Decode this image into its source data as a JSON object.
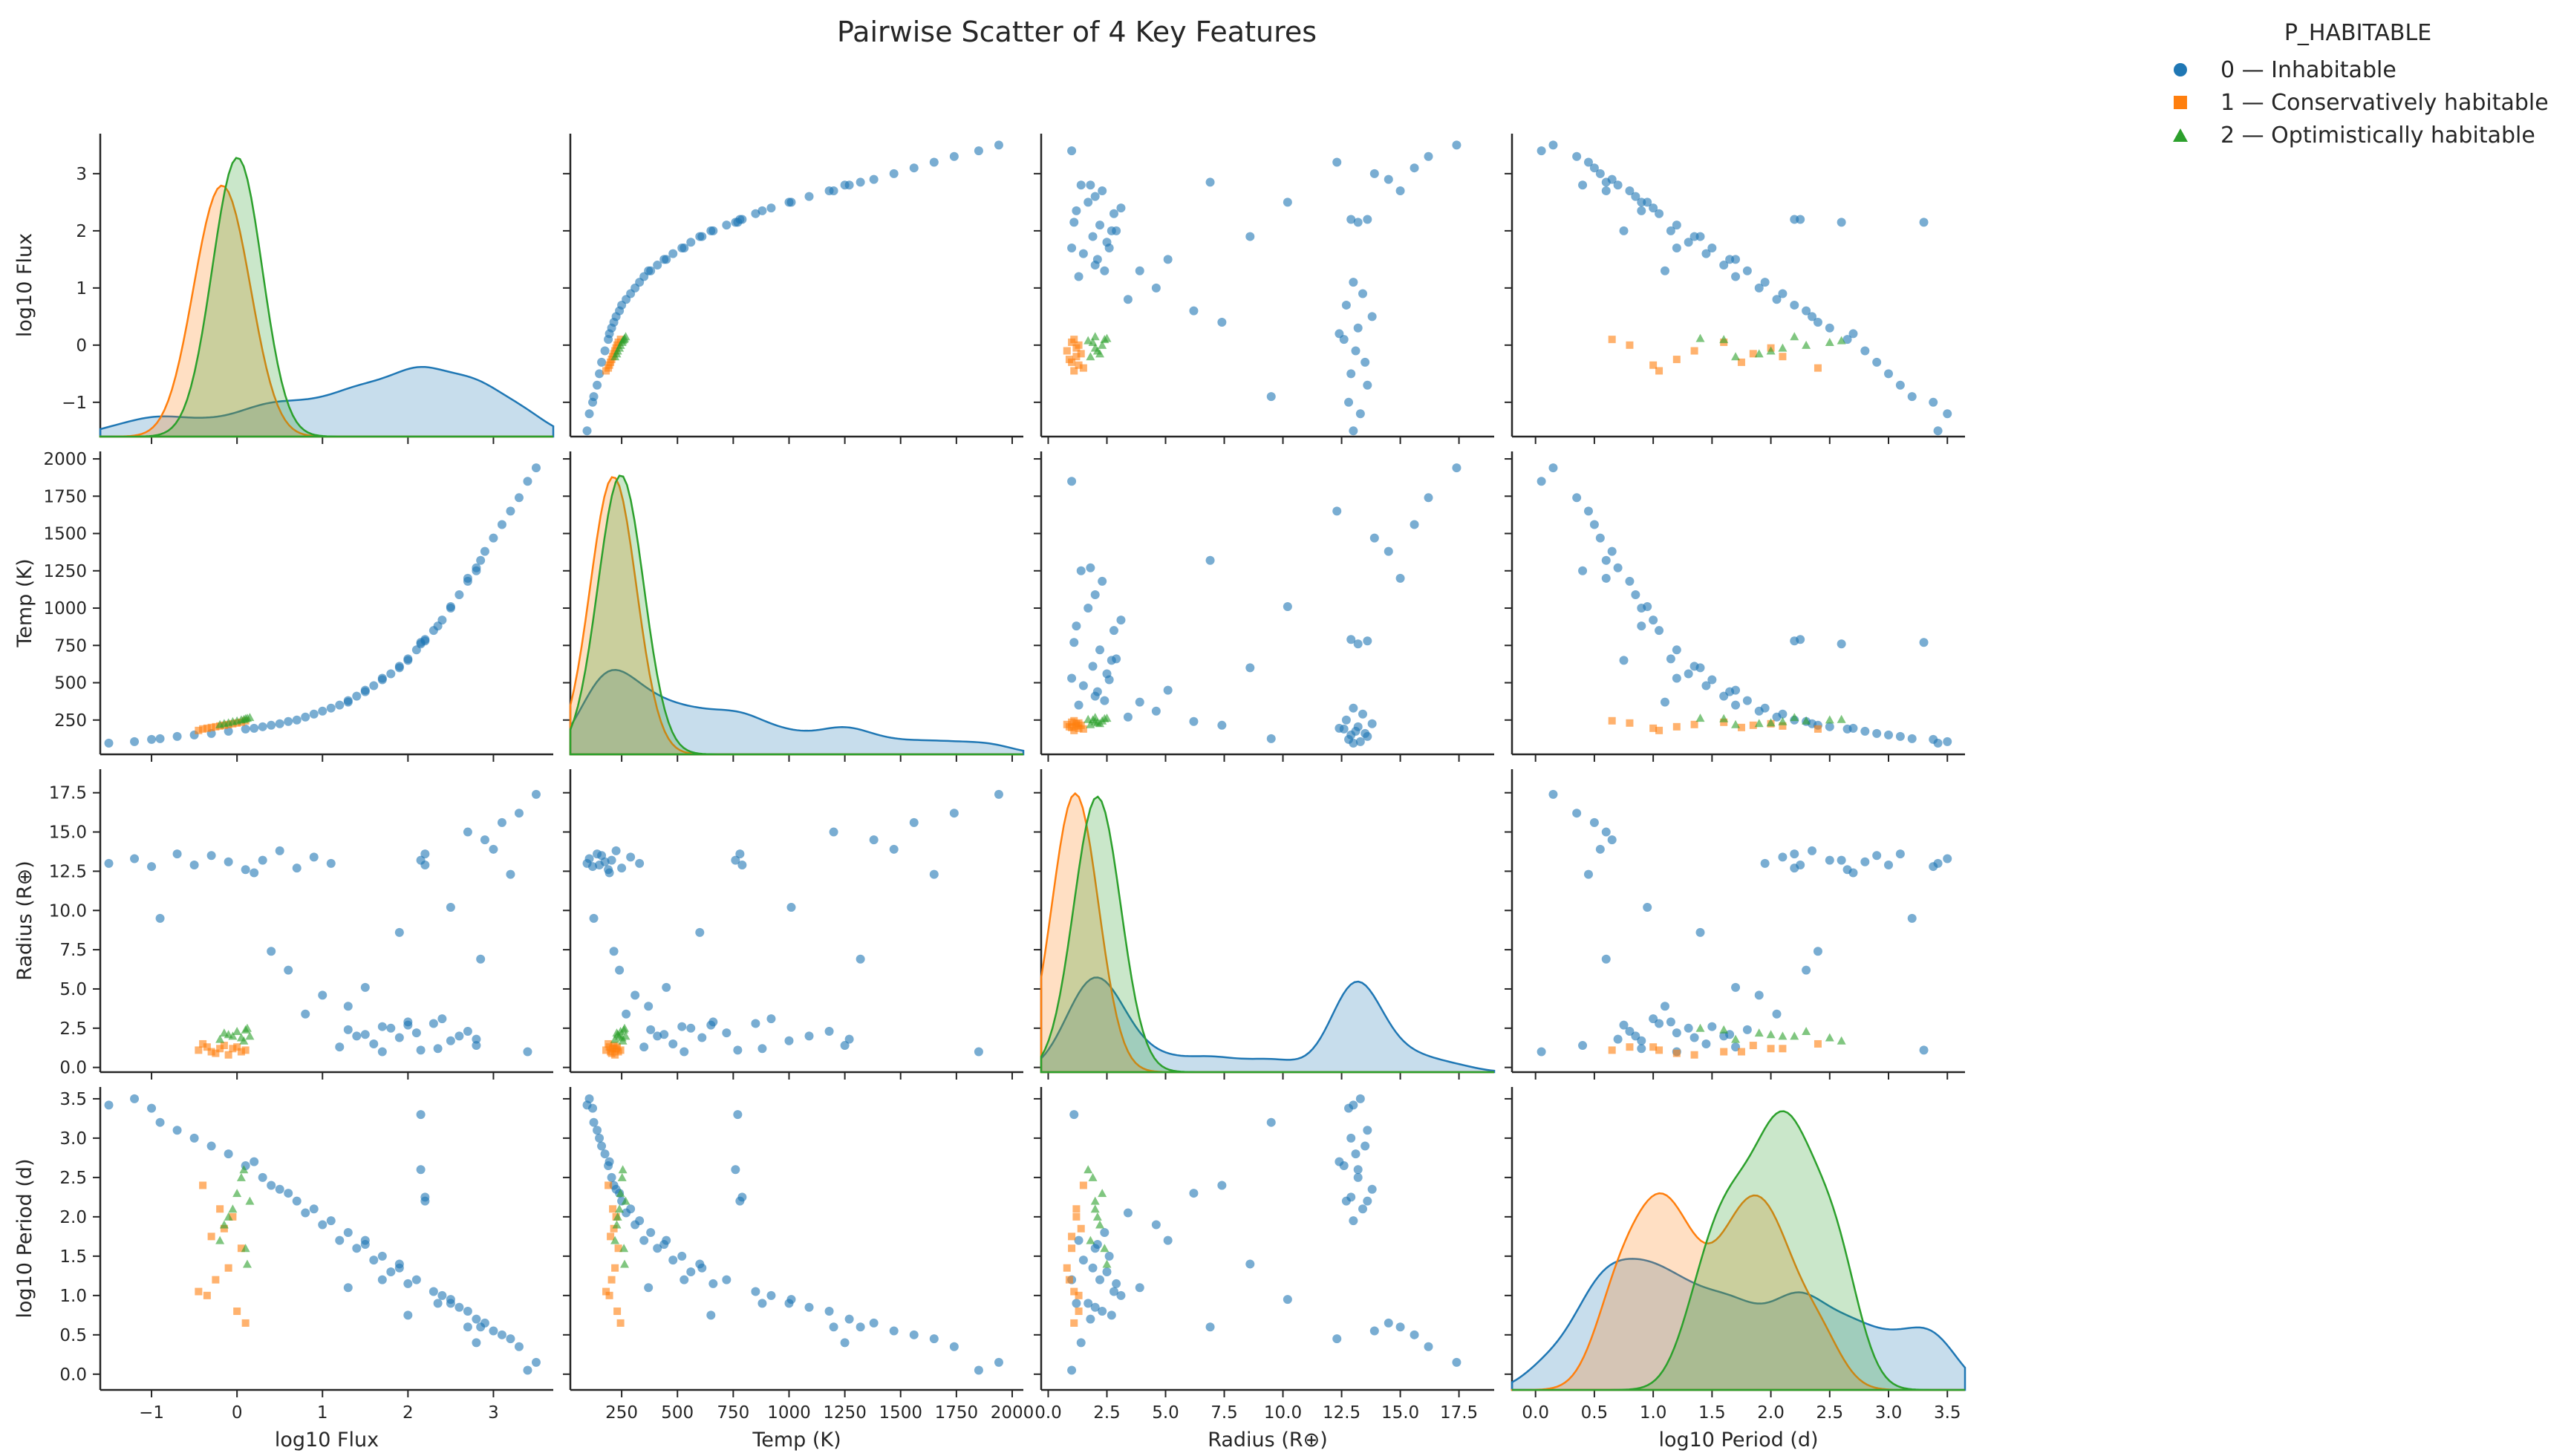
{
  "chart_data": {
    "type": "scatter",
    "kind": "pairplot",
    "title": "Pairwise Scatter of 4 Key Features",
    "variables": [
      {
        "key": "flux",
        "label": "log10 Flux",
        "range": [
          -1.6,
          3.7
        ],
        "ticks": [
          -1,
          0,
          1,
          2,
          3
        ],
        "diag_ticks": [
          -1,
          0,
          1,
          2,
          3
        ]
      },
      {
        "key": "temp",
        "label": "Temp (K)",
        "range": [
          20,
          2050
        ],
        "ticks": [
          250,
          500,
          750,
          1000,
          1250,
          1500,
          1750,
          2000
        ],
        "diag_ticks": [
          250,
          500,
          750,
          1000,
          1250,
          1500,
          1750,
          2000
        ]
      },
      {
        "key": "radius",
        "label": "Radius (R⊕)",
        "range": [
          -0.3,
          19
        ],
        "ticks": [
          0.0,
          2.5,
          5.0,
          7.5,
          10.0,
          12.5,
          15.0,
          17.5
        ],
        "diag_ticks": [
          0.0,
          2.5,
          5.0,
          7.5,
          10.0,
          12.5,
          15.0,
          17.5
        ]
      },
      {
        "key": "period",
        "label": "log10 Period (d)",
        "range": [
          -0.2,
          3.65
        ],
        "ticks": [
          0.0,
          0.5,
          1.0,
          1.5,
          2.0,
          2.5,
          3.0,
          3.5
        ],
        "diag_ticks": [
          0.0,
          0.5,
          1.0,
          1.5,
          2.0,
          2.5,
          3.0,
          3.5
        ]
      }
    ],
    "tick_text": {
      "flux": [
        "−1",
        "0",
        "1",
        "2",
        "3"
      ],
      "temp": [
        "250",
        "500",
        "750",
        "1000",
        "1250",
        "1500",
        "1750",
        "2000"
      ],
      "radius": [
        "0.0",
        "2.5",
        "5.0",
        "7.5",
        "10.0",
        "12.5",
        "15.0",
        "17.5"
      ],
      "period": [
        "0.0",
        "0.5",
        "1.0",
        "1.5",
        "2.0",
        "2.5",
        "3.0",
        "3.5"
      ]
    },
    "flux_diag_y_ticks": [
      -1,
      0,
      1,
      2,
      3
    ],
    "flux_diag_y_text": [
      "−1",
      "0",
      "1",
      "2",
      "3"
    ],
    "legend": {
      "title": "P_HABITABLE",
      "placement": "top-right, outside plot",
      "entries": [
        {
          "label": "0 — Inhabitable",
          "color": "#1f77b4",
          "marker": "circle"
        },
        {
          "label": "1 — Conservatively habitable",
          "color": "#ff7f0e",
          "marker": "square"
        },
        {
          "label": "2 — Optimistically habitable",
          "color": "#2ca02c",
          "marker": "triangle"
        }
      ]
    },
    "series_colors": [
      "#1f77b4",
      "#ff7f0e",
      "#2ca02c"
    ],
    "series": [
      {
        "name": "0 — Inhabitable",
        "points": [
          [
            -1.5,
            95,
            13.0,
            3.42
          ],
          [
            -1.2,
            105,
            13.3,
            3.5
          ],
          [
            -1.0,
            120,
            12.8,
            3.38
          ],
          [
            -0.9,
            125,
            9.5,
            3.2
          ],
          [
            -0.7,
            140,
            13.6,
            3.1
          ],
          [
            -0.5,
            150,
            12.9,
            3.0
          ],
          [
            -0.3,
            160,
            13.5,
            2.9
          ],
          [
            -0.1,
            175,
            13.1,
            2.8
          ],
          [
            0.1,
            190,
            12.6,
            2.65
          ],
          [
            0.3,
            205,
            13.2,
            2.5
          ],
          [
            0.5,
            225,
            13.8,
            2.35
          ],
          [
            0.7,
            250,
            12.7,
            2.2
          ],
          [
            0.9,
            290,
            13.4,
            2.1
          ],
          [
            1.1,
            330,
            13.0,
            1.95
          ],
          [
            1.3,
            380,
            2.4,
            1.8
          ],
          [
            1.5,
            440,
            2.1,
            1.65
          ],
          [
            1.7,
            520,
            2.6,
            1.5
          ],
          [
            1.9,
            610,
            1.9,
            1.35
          ],
          [
            2.1,
            720,
            2.2,
            1.2
          ],
          [
            2.3,
            850,
            2.8,
            1.05
          ],
          [
            2.5,
            1000,
            1.7,
            0.9
          ],
          [
            2.7,
            1180,
            2.3,
            0.8
          ],
          [
            2.9,
            1380,
            14.5,
            0.65
          ],
          [
            3.1,
            1560,
            15.6,
            0.5
          ],
          [
            3.3,
            1740,
            16.2,
            0.35
          ],
          [
            3.5,
            1940,
            17.4,
            0.15
          ],
          [
            0.8,
            270,
            3.4,
            2.05
          ],
          [
            1.0,
            310,
            4.6,
            1.9
          ],
          [
            1.2,
            350,
            1.3,
            1.7
          ],
          [
            1.4,
            410,
            2.0,
            1.6
          ],
          [
            1.6,
            480,
            1.5,
            1.45
          ],
          [
            1.8,
            560,
            2.5,
            1.3
          ],
          [
            2.0,
            660,
            2.9,
            1.15
          ],
          [
            2.2,
            780,
            13.6,
            2.2
          ],
          [
            2.2,
            790,
            12.9,
            2.25
          ],
          [
            2.4,
            920,
            3.1,
            1.0
          ],
          [
            2.6,
            1090,
            2.0,
            0.85
          ],
          [
            2.8,
            1270,
            1.8,
            0.7
          ],
          [
            3.0,
            1470,
            13.9,
            0.55
          ],
          [
            3.2,
            1650,
            12.3,
            0.45
          ],
          [
            0.4,
            215,
            7.4,
            2.4
          ],
          [
            0.6,
            240,
            6.2,
            2.3
          ],
          [
            1.5,
            450,
            5.1,
            1.7
          ],
          [
            1.9,
            600,
            8.6,
            1.4
          ],
          [
            2.5,
            1010,
            10.2,
            0.95
          ],
          [
            2.85,
            1320,
            6.9,
            0.6
          ],
          [
            2.15,
            770,
            1.1,
            3.3
          ],
          [
            2.15,
            760,
            13.2,
            2.6
          ],
          [
            1.7,
            530,
            1.0,
            1.2
          ],
          [
            2.35,
            880,
            1.2,
            0.9
          ],
          [
            2.0,
            650,
            2.7,
            0.75
          ],
          [
            1.3,
            370,
            3.9,
            1.1
          ],
          [
            2.8,
            1250,
            1.4,
            0.4
          ],
          [
            3.4,
            1850,
            1.0,
            0.05
          ],
          [
            0.2,
            195,
            12.4,
            2.7
          ],
          [
            2.7,
            1200,
            15.0,
            0.6
          ]
        ]
      },
      {
        "name": "1 — Conservatively habitable",
        "points": [
          [
            -0.45,
            180,
            1.1,
            1.05
          ],
          [
            -0.35,
            195,
            1.3,
            1.0
          ],
          [
            -0.25,
            205,
            0.9,
            1.2
          ],
          [
            -0.15,
            215,
            1.4,
            1.85
          ],
          [
            -0.05,
            225,
            1.2,
            2.0
          ],
          [
            0.05,
            235,
            1.0,
            1.6
          ],
          [
            -0.4,
            190,
            1.5,
            2.4
          ],
          [
            -0.3,
            200,
            1.0,
            1.75
          ],
          [
            -0.2,
            210,
            1.2,
            2.1
          ],
          [
            0.0,
            230,
            1.3,
            0.8
          ],
          [
            0.1,
            245,
            1.1,
            0.65
          ],
          [
            -0.1,
            220,
            0.8,
            1.35
          ]
        ]
      },
      {
        "name": "2 — Optimistically habitable",
        "points": [
          [
            -0.2,
            220,
            1.8,
            1.7
          ],
          [
            -0.1,
            232,
            2.1,
            2.0
          ],
          [
            0.0,
            245,
            2.3,
            2.3
          ],
          [
            0.05,
            252,
            1.9,
            2.5
          ],
          [
            0.1,
            260,
            2.4,
            1.6
          ],
          [
            0.15,
            268,
            2.0,
            2.2
          ],
          [
            -0.15,
            228,
            2.2,
            1.9
          ],
          [
            0.08,
            255,
            1.7,
            2.6
          ],
          [
            0.12,
            263,
            2.5,
            1.4
          ],
          [
            -0.05,
            240,
            2.0,
            2.1
          ]
        ]
      }
    ]
  }
}
